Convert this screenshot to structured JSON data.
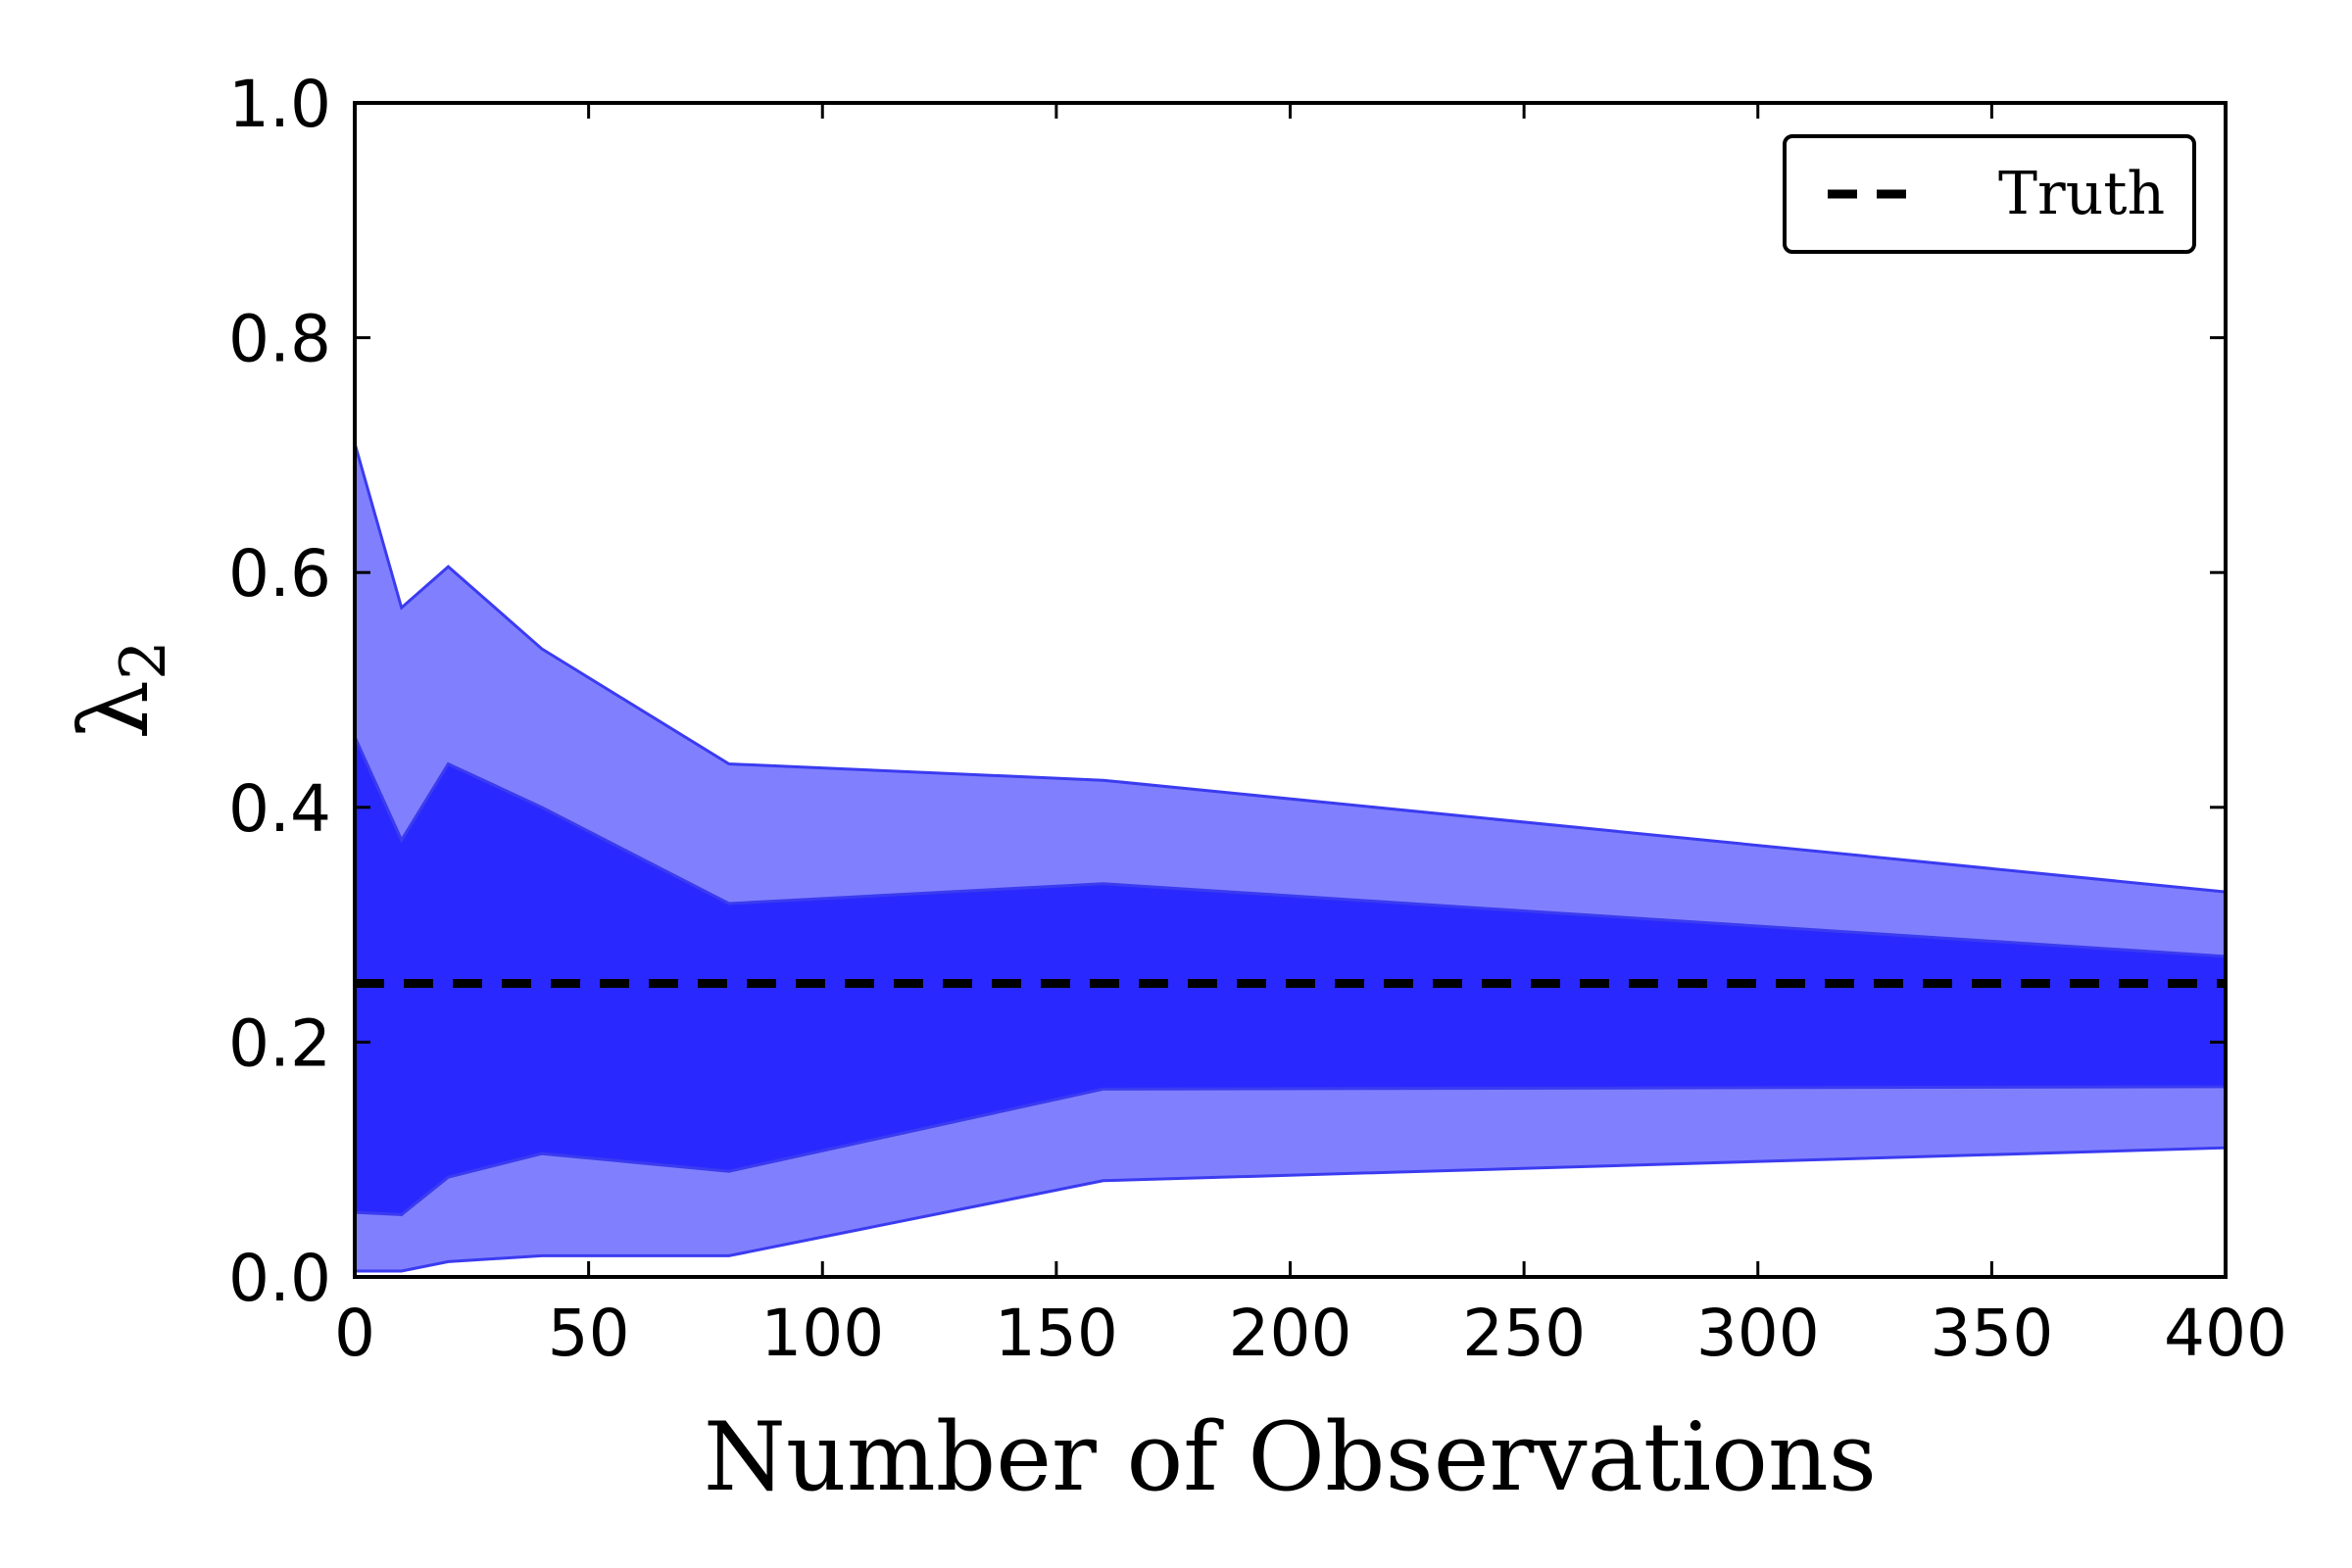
{
  "chart_data": {
    "type": "area",
    "xlabel": "Number of Observations",
    "ylabel": {
      "symbol": "λ",
      "subscript": "2"
    },
    "xlim": [
      0,
      400
    ],
    "ylim": [
      0.0,
      1.0
    ],
    "xticks": [
      "0",
      "50",
      "100",
      "150",
      "200",
      "250",
      "300",
      "350",
      "400"
    ],
    "yticks": [
      "0.0",
      "0.2",
      "0.4",
      "0.6",
      "0.8",
      "1.0"
    ],
    "grid": false,
    "legend_position": "top-right",
    "colors": {
      "outer_band": "#8080ff",
      "inner_band": "#2929ff",
      "band_edge": "#3b3bf0",
      "truth": "#000000"
    },
    "x": [
      0,
      10,
      20,
      40,
      80,
      160,
      400
    ],
    "bands": [
      {
        "lower": [
          0.005,
          0.005,
          0.013,
          0.018,
          0.018,
          0.082,
          0.11
        ],
        "upper": [
          0.71,
          0.57,
          0.605,
          0.535,
          0.437,
          0.423,
          0.328
        ]
      },
      {
        "lower": [
          0.055,
          0.053,
          0.085,
          0.105,
          0.09,
          0.16,
          0.162
        ],
        "upper": [
          0.46,
          0.372,
          0.437,
          0.4,
          0.318,
          0.335,
          0.273
        ]
      }
    ],
    "truth": {
      "name": "Truth",
      "value": 0.25
    }
  }
}
